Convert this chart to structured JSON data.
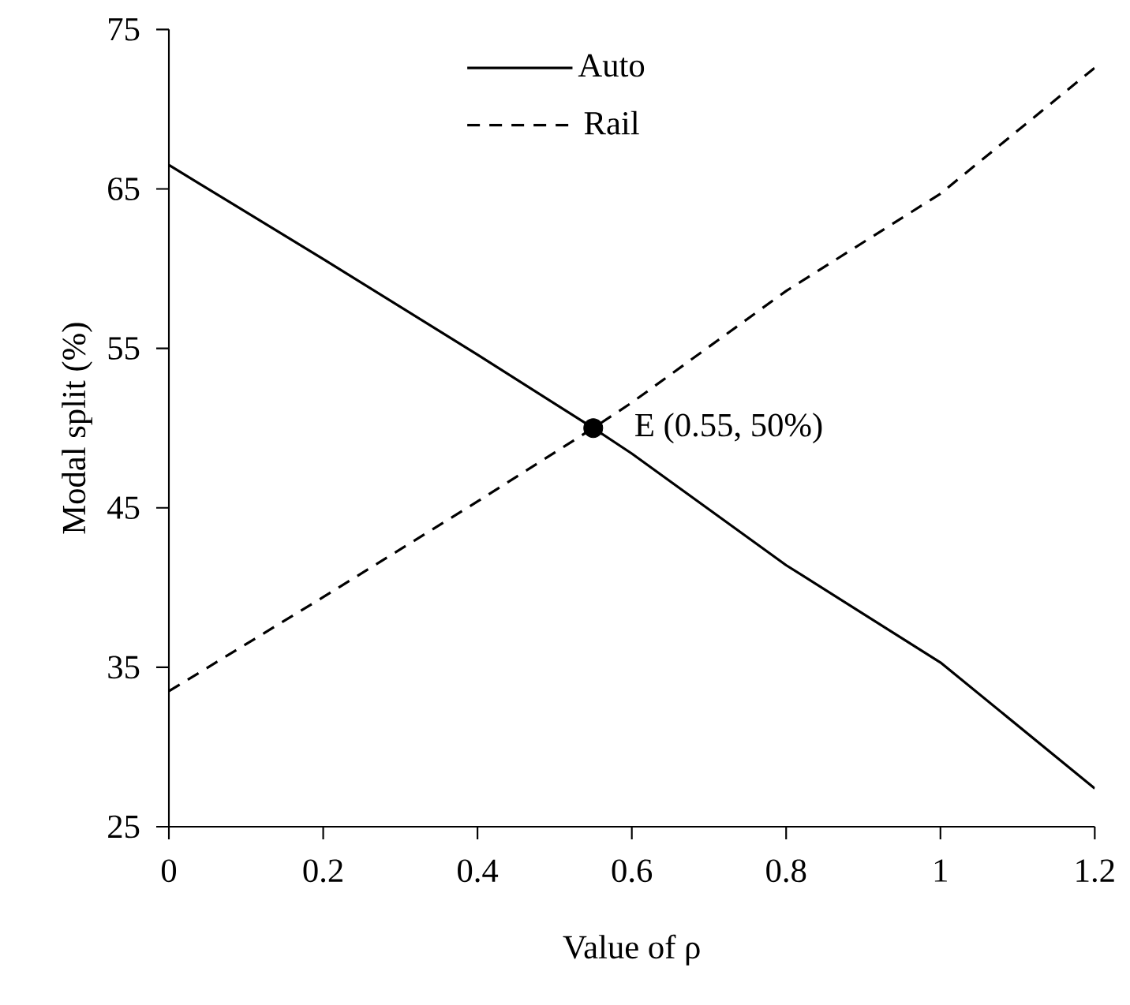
{
  "chart_data": {
    "type": "line",
    "xlabel": "Value of ρ",
    "ylabel": "Modal split (%)",
    "xlim": [
      0,
      1.2
    ],
    "ylim": [
      25,
      75
    ],
    "xticks": [
      0,
      0.2,
      0.4,
      0.6,
      0.8,
      1,
      1.2
    ],
    "yticks": [
      25,
      35,
      45,
      55,
      65,
      75
    ],
    "grid": false,
    "legend": "top",
    "x": [
      0,
      0.2,
      0.4,
      0.55,
      0.6,
      0.8,
      1.0,
      1.2
    ],
    "series": [
      {
        "name": "Auto",
        "color": "#000000",
        "line_style": "solid",
        "values": [
          66.5,
          60.6,
          54.6,
          50,
          48.4,
          41.4,
          35.3,
          27.4
        ]
      },
      {
        "name": "Rail",
        "color": "#000000",
        "line_style": "dashed",
        "values": [
          33.5,
          39.4,
          45.4,
          50,
          51.6,
          58.6,
          64.7,
          72.6
        ]
      },
      {
        "type": "scatter",
        "color": "#000000",
        "x": [
          0.55
        ],
        "values": [
          50
        ]
      }
    ],
    "annotations": [
      {
        "text": "E (0.55, 50%)",
        "x": 0.55,
        "y": 50
      }
    ]
  }
}
